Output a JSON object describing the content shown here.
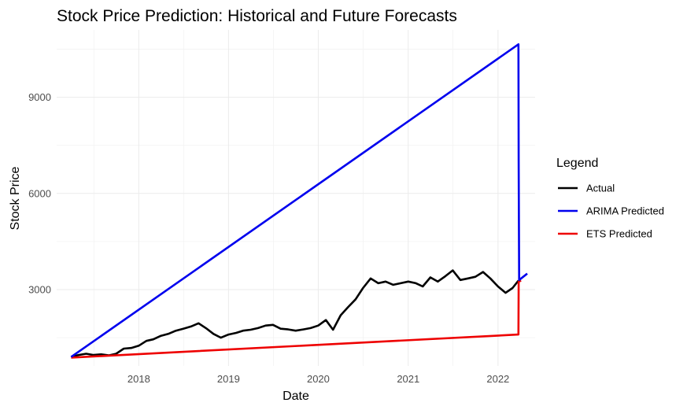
{
  "chart_data": {
    "type": "line",
    "title": "Stock Price Prediction: Historical and Future Forecasts",
    "xlabel": "Date",
    "ylabel": "Stock Price",
    "x_type": "date",
    "xlim": [
      "2017-02-01",
      "2022-06-01"
    ],
    "ylim": [
      620,
      11100
    ],
    "x_ticks": [
      {
        "value": "2018-01-01",
        "label": "2018"
      },
      {
        "value": "2019-01-01",
        "label": "2019"
      },
      {
        "value": "2020-01-01",
        "label": "2020"
      },
      {
        "value": "2021-01-01",
        "label": "2021"
      },
      {
        "value": "2022-01-01",
        "label": "2022"
      }
    ],
    "y_ticks": [
      3000,
      6000,
      9000
    ],
    "grid": true,
    "legend": {
      "title": "Legend",
      "position": "right"
    },
    "series": [
      {
        "name": "Actual",
        "color": "#000000",
        "points": [
          [
            "2017-04-01",
            900
          ],
          [
            "2017-05-01",
            960
          ],
          [
            "2017-06-01",
            1000
          ],
          [
            "2017-07-01",
            960
          ],
          [
            "2017-08-01",
            980
          ],
          [
            "2017-09-01",
            950
          ],
          [
            "2017-10-01",
            1000
          ],
          [
            "2017-11-01",
            1160
          ],
          [
            "2017-12-01",
            1180
          ],
          [
            "2018-01-01",
            1250
          ],
          [
            "2018-02-01",
            1400
          ],
          [
            "2018-03-01",
            1450
          ],
          [
            "2018-04-01",
            1560
          ],
          [
            "2018-05-01",
            1620
          ],
          [
            "2018-06-01",
            1720
          ],
          [
            "2018-07-01",
            1780
          ],
          [
            "2018-08-01",
            1850
          ],
          [
            "2018-09-01",
            1950
          ],
          [
            "2018-10-01",
            1800
          ],
          [
            "2018-11-01",
            1620
          ],
          [
            "2018-12-01",
            1500
          ],
          [
            "2019-01-01",
            1600
          ],
          [
            "2019-02-01",
            1650
          ],
          [
            "2019-03-01",
            1720
          ],
          [
            "2019-04-01",
            1750
          ],
          [
            "2019-05-01",
            1800
          ],
          [
            "2019-06-01",
            1880
          ],
          [
            "2019-07-01",
            1900
          ],
          [
            "2019-08-01",
            1780
          ],
          [
            "2019-09-01",
            1760
          ],
          [
            "2019-10-01",
            1720
          ],
          [
            "2019-11-01",
            1760
          ],
          [
            "2019-12-01",
            1800
          ],
          [
            "2020-01-01",
            1880
          ],
          [
            "2020-02-01",
            2050
          ],
          [
            "2020-03-01",
            1750
          ],
          [
            "2020-04-01",
            2200
          ],
          [
            "2020-05-01",
            2450
          ],
          [
            "2020-06-01",
            2700
          ],
          [
            "2020-07-01",
            3050
          ],
          [
            "2020-08-01",
            3350
          ],
          [
            "2020-09-01",
            3200
          ],
          [
            "2020-10-01",
            3250
          ],
          [
            "2020-11-01",
            3150
          ],
          [
            "2020-12-01",
            3200
          ],
          [
            "2021-01-01",
            3250
          ],
          [
            "2021-02-01",
            3200
          ],
          [
            "2021-03-01",
            3100
          ],
          [
            "2021-04-01",
            3380
          ],
          [
            "2021-05-01",
            3250
          ],
          [
            "2021-06-01",
            3420
          ],
          [
            "2021-07-01",
            3600
          ],
          [
            "2021-08-01",
            3300
          ],
          [
            "2021-09-01",
            3350
          ],
          [
            "2021-10-01",
            3400
          ],
          [
            "2021-11-01",
            3550
          ],
          [
            "2021-12-01",
            3350
          ],
          [
            "2022-01-01",
            3100
          ],
          [
            "2022-02-01",
            2900
          ],
          [
            "2022-03-01",
            3050
          ],
          [
            "2022-03-25",
            3280
          ]
        ]
      },
      {
        "name": "ARIMA Predicted",
        "color": "#0000ee",
        "points": [
          [
            "2017-04-01",
            900
          ],
          [
            "2022-03-25",
            10650
          ],
          [
            "2022-03-26",
            7000
          ],
          [
            "2022-03-28",
            3300
          ],
          [
            "2022-04-30",
            3500
          ]
        ]
      },
      {
        "name": "ETS Predicted",
        "color": "#ee0000",
        "points": [
          [
            "2017-04-01",
            880
          ],
          [
            "2022-03-25",
            1600
          ],
          [
            "2022-03-26",
            3250
          ],
          [
            "2022-04-05",
            3280
          ]
        ]
      }
    ]
  }
}
